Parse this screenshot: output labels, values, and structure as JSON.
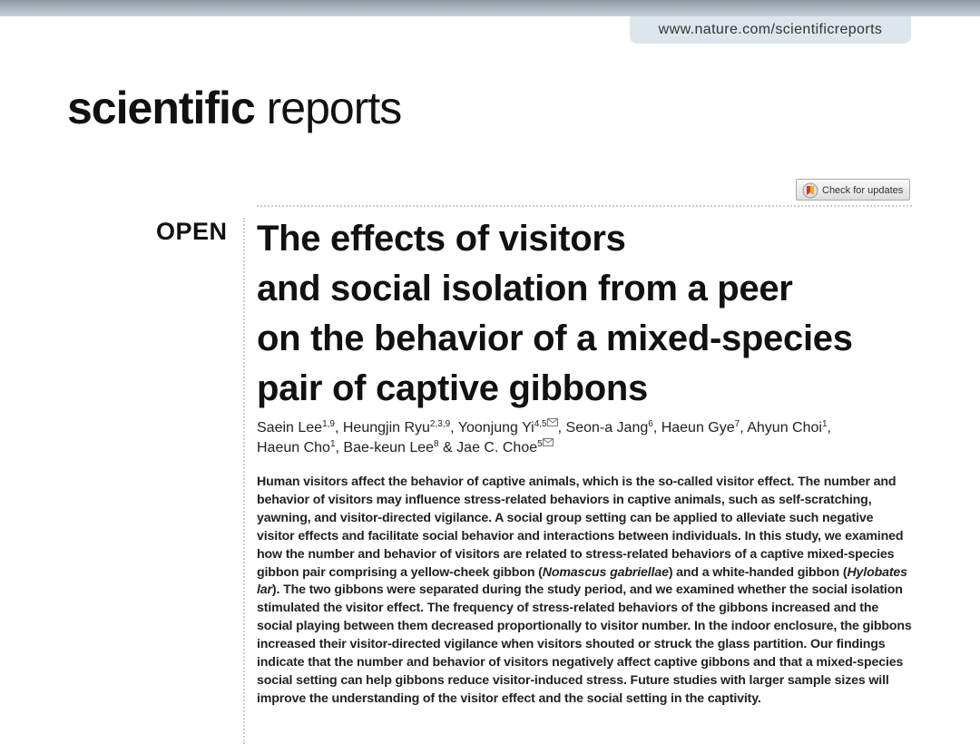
{
  "header": {
    "url": "www.nature.com/scientificreports",
    "journal_bold": "scientific",
    "journal_light": "reports",
    "update_button": "Check for updates"
  },
  "article": {
    "access": "OPEN",
    "title_lines": [
      "The effects of visitors",
      "and social isolation from a peer",
      "on the behavior of a mixed-species",
      "pair of captive gibbons"
    ],
    "author_lines": [
      [
        {
          "name": "Saein Lee",
          "sup": "1,9",
          "after": ", "
        },
        {
          "name": "Heungjin Ryu",
          "sup": "2,3,9",
          "after": ", "
        },
        {
          "name": "Yoonjung Yi",
          "sup": "4,5",
          "corresponding": true,
          "after": ", "
        },
        {
          "name": "Seon-a Jang",
          "sup": "6",
          "after": ", "
        },
        {
          "name": "Haeun Gye",
          "sup": "7",
          "after": ", "
        },
        {
          "name": "Ahyun Choi",
          "sup": "1",
          "after": ","
        }
      ],
      [
        {
          "name": "Haeun Cho",
          "sup": "1",
          "after": ", "
        },
        {
          "name": "Bae-keun Lee",
          "sup": "8",
          "after": " & "
        },
        {
          "name": "Jae C. Choe",
          "sup": "5",
          "corresponding": true
        }
      ]
    ],
    "abstract": [
      "Human visitors affect the behavior of captive animals, which is the so-called visitor effect. The number and behavior of visitors may influence stress-related behaviors in captive animals, such as self-scratching, yawning, and visitor-directed vigilance. A social group setting can be applied to alleviate such negative visitor effects and facilitate social behavior and interactions between individuals. In this study, we examined how the number and behavior of visitors are related to stress-related behaviors of a captive mixed-species gibbon pair comprising a yellow-cheek gibbon (",
      "Nomascus gabriellae",
      ") and a white-handed gibbon (",
      "Hylobates lar",
      "). The two gibbons were separated during the study period, and we examined whether the social isolation stimulated the visitor effect. The frequency of stress-related behaviors of the gibbons increased and the social playing between them decreased proportionally to visitor number. In the indoor enclosure, the gibbons increased their visitor-directed vigilance when visitors shouted or struck the glass partition. Our findings indicate that the number and behavior of visitors negatively affect captive gibbons and that a mixed-species social setting can help gibbons reduce visitor-induced stress. Future studies with larger sample sizes will improve the understanding of the visitor effect and the social setting in the captivity."
    ]
  }
}
